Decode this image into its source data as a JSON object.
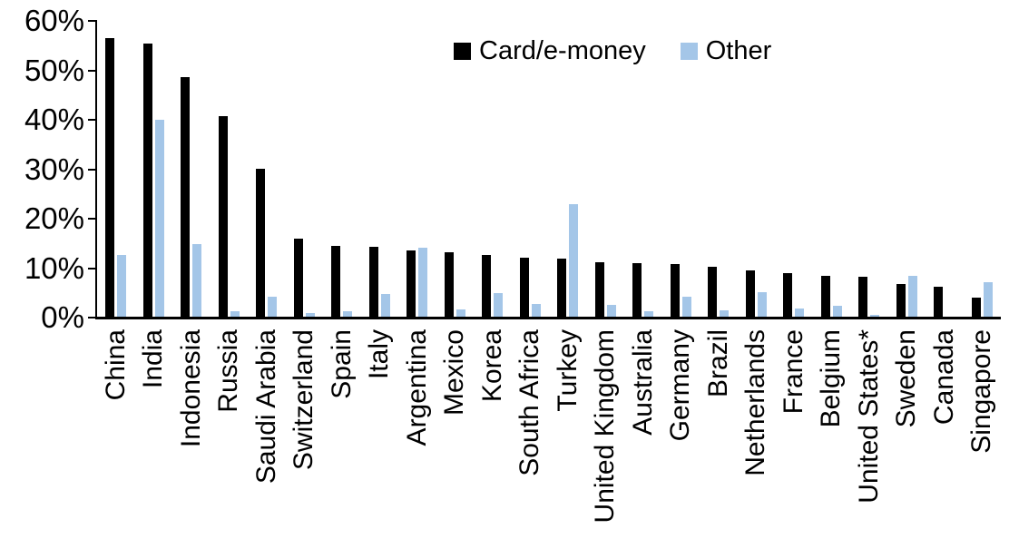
{
  "chart_data": {
    "type": "bar",
    "title": "",
    "xlabel": "",
    "ylabel": "",
    "ylim": [
      0,
      60
    ],
    "ytick_step": 10,
    "ytick_labels": [
      "0%",
      "10%",
      "20%",
      "30%",
      "40%",
      "50%",
      "60%"
    ],
    "grid": false,
    "legend_position": "top-center",
    "categories": [
      "China",
      "India",
      "Indonesia",
      "Russia",
      "Saudi Arabia",
      "Switzerland",
      "Spain",
      "Italy",
      "Argentina",
      "Mexico",
      "Korea",
      "South Africa",
      "Turkey",
      "United Kingdom",
      "Australia",
      "Germany",
      "Brazil",
      "Netherlands",
      "France",
      "Belgium",
      "United States*",
      "Sweden",
      "Canada",
      "Singapore"
    ],
    "series": [
      {
        "name": "Card/e-money",
        "color": "#000000",
        "values": [
          56.4,
          55.2,
          48.4,
          40.6,
          30.0,
          15.8,
          14.3,
          14.2,
          13.4,
          13.0,
          12.4,
          11.9,
          11.7,
          11.1,
          10.8,
          10.7,
          10.1,
          9.3,
          8.8,
          8.3,
          8.0,
          6.6,
          6.1,
          3.9
        ]
      },
      {
        "name": "Other",
        "color": "#A4C6E8",
        "values": [
          12.4,
          39.9,
          14.6,
          1.1,
          4.0,
          0.8,
          1.1,
          4.6,
          13.9,
          1.4,
          4.7,
          2.5,
          22.7,
          2.4,
          1.1,
          4.0,
          1.3,
          5.0,
          1.7,
          2.2,
          0.3,
          8.2,
          0.0,
          6.9
        ]
      }
    ]
  }
}
